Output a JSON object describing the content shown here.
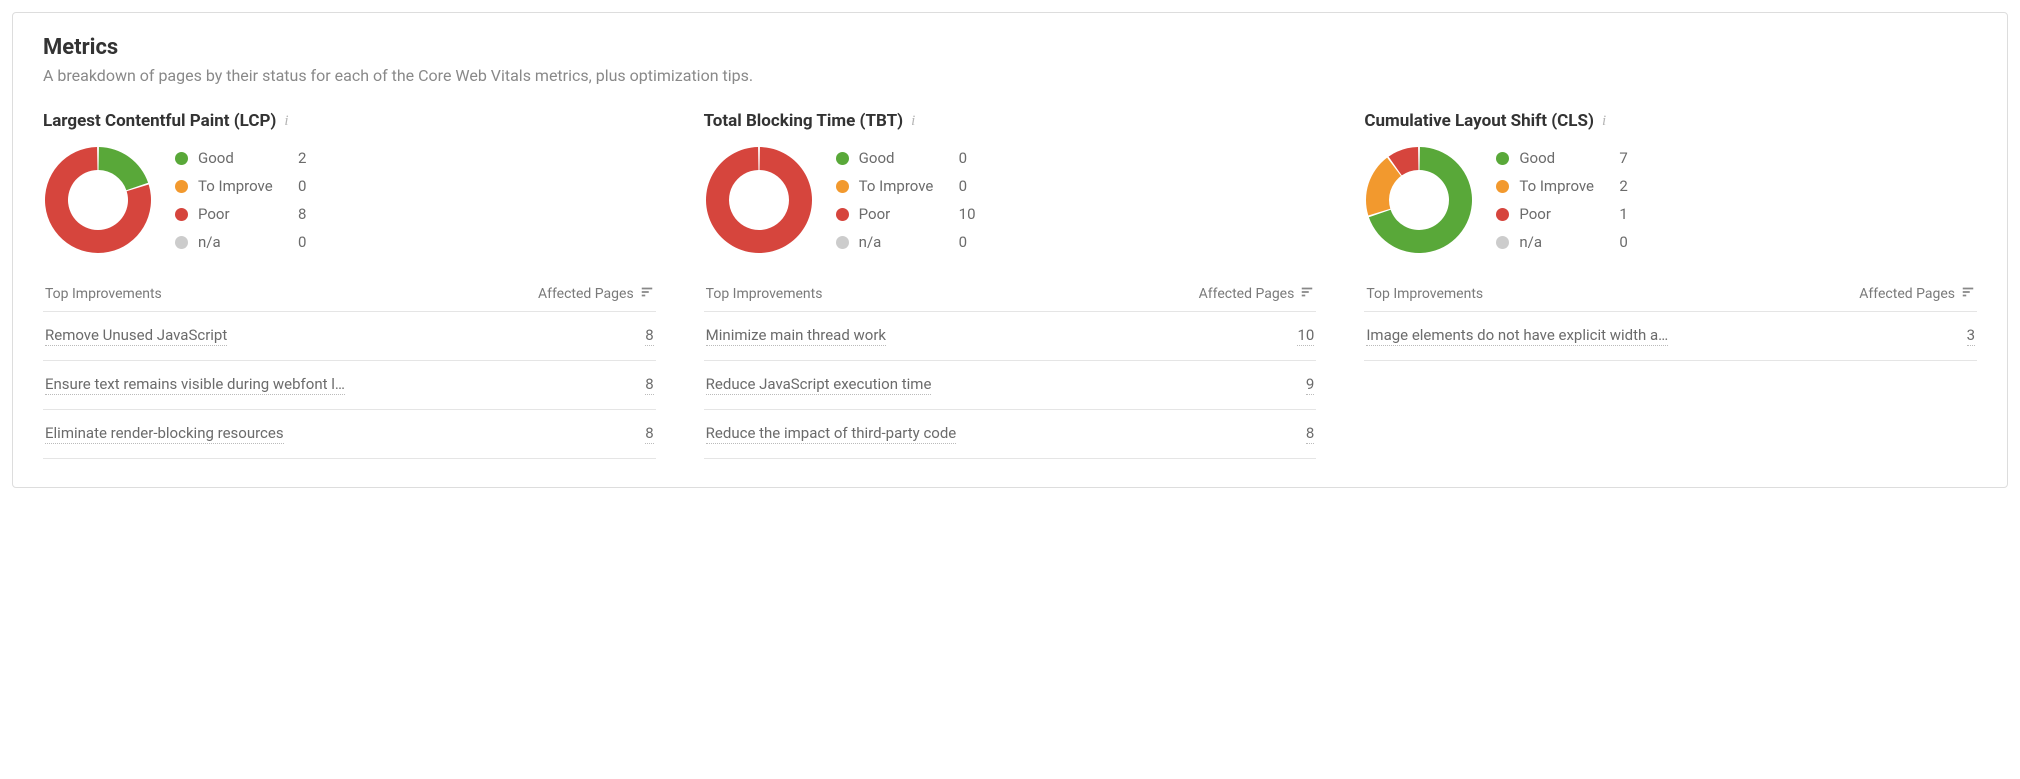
{
  "colors": {
    "good": "#59a839",
    "improve": "#f2992e",
    "poor": "#d6453d",
    "na": "#cccccc",
    "gap": "#ffffff",
    "text_muted": "#7a7a7a"
  },
  "header": {
    "title": "Metrics",
    "subtitle": "A breakdown of pages by their status for each of the Core Web Vitals metrics, plus optimization tips."
  },
  "legend_labels": {
    "good": "Good",
    "improve": "To Improve",
    "poor": "Poor",
    "na": "n/a"
  },
  "table_head": {
    "left": "Top Improvements",
    "right": "Affected Pages"
  },
  "metrics": [
    {
      "id": "lcp",
      "title": "Largest Contentful Paint (LCP)",
      "donut": {
        "good": 2,
        "improve": 0,
        "poor": 8,
        "na": 0
      },
      "improvements": [
        {
          "label": "Remove Unused JavaScript",
          "count": 8
        },
        {
          "label": "Ensure text remains visible during webfont l…",
          "count": 8
        },
        {
          "label": "Eliminate render-blocking resources",
          "count": 8
        }
      ]
    },
    {
      "id": "tbt",
      "title": "Total Blocking Time (TBT)",
      "donut": {
        "good": 0,
        "improve": 0,
        "poor": 10,
        "na": 0
      },
      "improvements": [
        {
          "label": "Minimize main thread work",
          "count": 10
        },
        {
          "label": "Reduce JavaScript execution time",
          "count": 9
        },
        {
          "label": "Reduce the impact of third-party code",
          "count": 8
        }
      ]
    },
    {
      "id": "cls",
      "title": "Cumulative Layout Shift (CLS)",
      "donut": {
        "good": 7,
        "improve": 2,
        "poor": 1,
        "na": 0
      },
      "improvements": [
        {
          "label": "Image elements do not have explicit width a…",
          "count": 3
        }
      ]
    }
  ],
  "chart_style": {
    "size": 110,
    "inner_radius": 30,
    "outer_radius": 53,
    "gap_deg": 2,
    "start_angle": -90
  }
}
